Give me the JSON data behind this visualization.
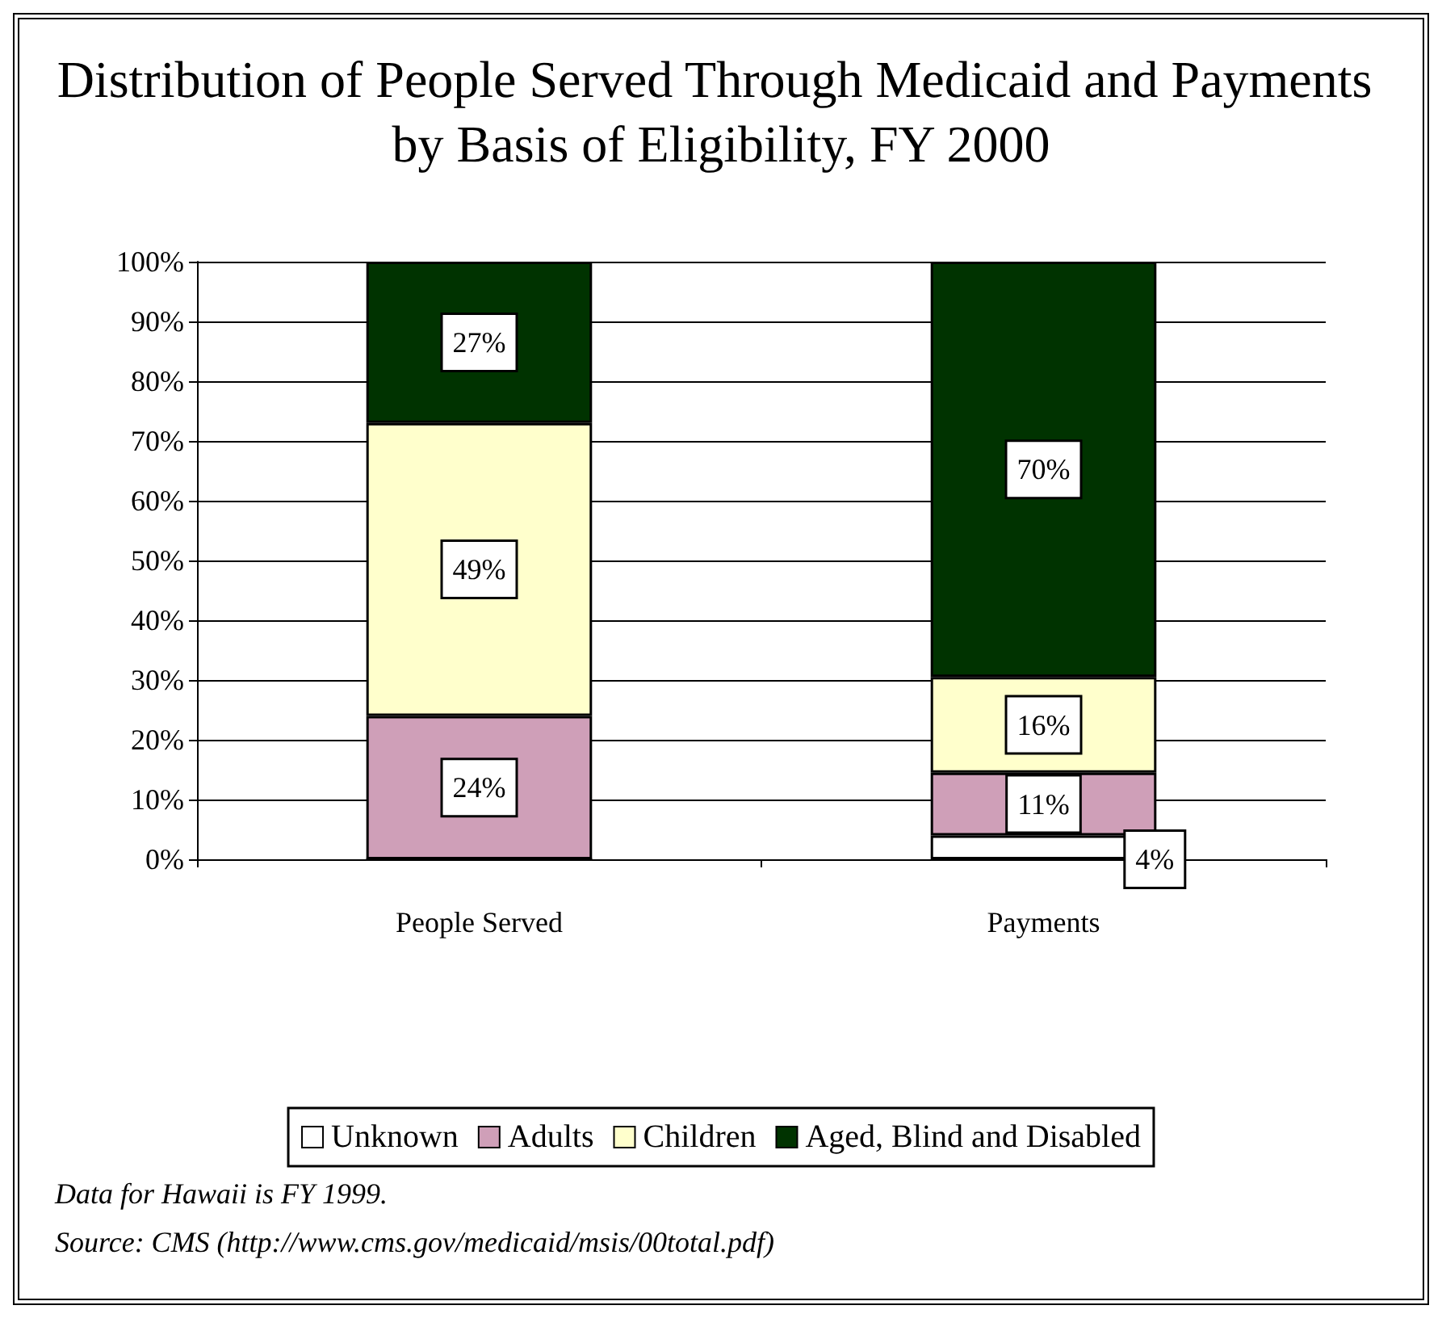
{
  "chart_data": {
    "type": "bar",
    "title": "Distribution of People Served Through Medicaid and Payments by Basis of Eligibility, FY 2000",
    "categories": [
      "People Served",
      "Payments"
    ],
    "stacked": true,
    "series": [
      {
        "name": "Unknown",
        "color": "#ffffff",
        "values": [
          0,
          4
        ],
        "value_labels": [
          null,
          "4%"
        ]
      },
      {
        "name": "Adults",
        "color": "#cf9fb8",
        "values": [
          24,
          10.5
        ],
        "value_labels": [
          "24%",
          "11%"
        ]
      },
      {
        "name": "Children",
        "color": "#ffffcc",
        "values": [
          49,
          16
        ],
        "value_labels": [
          "49%",
          "16%"
        ]
      },
      {
        "name": "Aged, Blind and Disabled",
        "color": "#003300",
        "values": [
          27,
          69.5
        ],
        "value_labels": [
          "27%",
          "70%"
        ]
      }
    ],
    "ylim": [
      0,
      100
    ],
    "yticks": [
      {
        "value": 0,
        "label": "0%"
      },
      {
        "value": 10,
        "label": "10%"
      },
      {
        "value": 20,
        "label": "20%"
      },
      {
        "value": 30,
        "label": "30%"
      },
      {
        "value": 40,
        "label": "40%"
      },
      {
        "value": 50,
        "label": "50%"
      },
      {
        "value": 60,
        "label": "60%"
      },
      {
        "value": 70,
        "label": "70%"
      },
      {
        "value": 80,
        "label": "80%"
      },
      {
        "value": 90,
        "label": "90%"
      },
      {
        "value": 100,
        "label": "100%"
      }
    ],
    "grid": "y",
    "legend": "bottom",
    "annotations": [
      "Data for Hawaii is FY 1999.",
      "Source: CMS (http://www.cms.gov/medicaid/msis/00total.pdf)"
    ]
  }
}
